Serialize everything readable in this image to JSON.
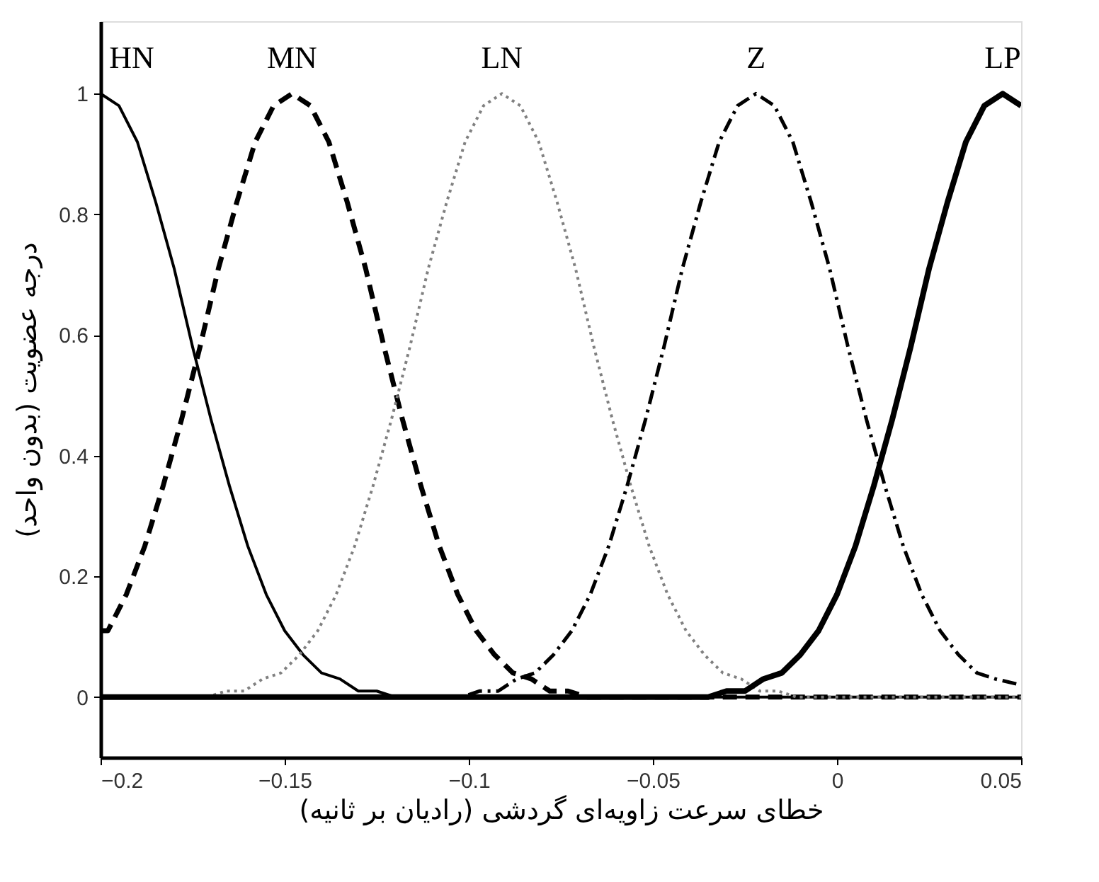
{
  "chart_data": {
    "type": "line",
    "xlabel": "خطای سرعت زاویه‌ای گردشی (رادیان بر ثانیه)",
    "ylabel": "درجه عضویت (بدون واحد)",
    "xlim": [
      -0.2,
      0.05
    ],
    "xticks": [
      -0.2,
      -0.15,
      -0.1,
      -0.05,
      0,
      0.05
    ],
    "ylim": [
      -0.1,
      1.12
    ],
    "yticks": [
      0,
      0.2,
      0.4,
      0.6,
      0.8,
      1
    ],
    "grid": false,
    "marker": "none",
    "series": [
      {
        "name": "HN",
        "color": "#000000",
        "line_style": "solid",
        "x": [
          -0.2,
          -0.195,
          -0.19,
          -0.185,
          -0.18,
          -0.175,
          -0.17,
          -0.165,
          -0.16,
          -0.155,
          -0.15,
          -0.145,
          -0.14,
          -0.135,
          -0.13,
          -0.125,
          -0.12,
          0.05
        ],
        "values": [
          1,
          0.98,
          0.92,
          0.82,
          0.71,
          0.58,
          0.46,
          0.35,
          0.25,
          0.17,
          0.11,
          0.07,
          0.04,
          0.03,
          0.01,
          0.01,
          0,
          0
        ]
      },
      {
        "name": "MN",
        "color": "#000000",
        "line_style": "dashed",
        "x": [
          -0.2,
          -0.198,
          -0.193,
          -0.188,
          -0.183,
          -0.178,
          -0.173,
          -0.168,
          -0.163,
          -0.158,
          -0.153,
          -0.148,
          -0.143,
          -0.138,
          -0.133,
          -0.128,
          -0.123,
          -0.118,
          -0.113,
          -0.108,
          -0.103,
          -0.098,
          -0.093,
          -0.088,
          -0.083,
          -0.078,
          -0.073,
          -0.068,
          0.05
        ],
        "values": [
          0.11,
          0.11,
          0.17,
          0.25,
          0.35,
          0.46,
          0.58,
          0.71,
          0.82,
          0.92,
          0.98,
          1,
          0.98,
          0.92,
          0.82,
          0.71,
          0.58,
          0.46,
          0.35,
          0.25,
          0.17,
          0.11,
          0.07,
          0.04,
          0.03,
          0.01,
          0.01,
          0,
          0
        ]
      },
      {
        "name": "LN",
        "color": "#808080",
        "line_style": "dotted",
        "x": [
          -0.2,
          -0.171,
          -0.166,
          -0.161,
          -0.156,
          -0.151,
          -0.146,
          -0.141,
          -0.136,
          -0.131,
          -0.126,
          -0.121,
          -0.116,
          -0.111,
          -0.106,
          -0.101,
          -0.096,
          -0.091,
          -0.086,
          -0.081,
          -0.076,
          -0.071,
          -0.066,
          -0.061,
          -0.056,
          -0.051,
          -0.046,
          -0.041,
          -0.036,
          -0.031,
          -0.026,
          -0.021,
          -0.016,
          -0.011,
          0.05
        ],
        "values": [
          0,
          0,
          0.01,
          0.01,
          0.03,
          0.04,
          0.07,
          0.11,
          0.17,
          0.25,
          0.35,
          0.46,
          0.58,
          0.71,
          0.82,
          0.92,
          0.98,
          1,
          0.98,
          0.92,
          0.82,
          0.71,
          0.58,
          0.46,
          0.35,
          0.25,
          0.17,
          0.11,
          0.07,
          0.04,
          0.03,
          0.01,
          0.01,
          0,
          0
        ]
      },
      {
        "name": "Z",
        "color": "#000000",
        "line_style": "dashdot",
        "x": [
          -0.2,
          -0.102,
          -0.097,
          -0.092,
          -0.087,
          -0.082,
          -0.077,
          -0.072,
          -0.067,
          -0.062,
          -0.057,
          -0.052,
          -0.047,
          -0.042,
          -0.037,
          -0.032,
          -0.027,
          -0.022,
          -0.017,
          -0.012,
          -0.007,
          -0.002,
          0.003,
          0.008,
          0.013,
          0.018,
          0.023,
          0.028,
          0.033,
          0.038,
          0.043,
          0.05
        ],
        "values": [
          0,
          0,
          0.01,
          0.01,
          0.03,
          0.04,
          0.07,
          0.11,
          0.17,
          0.25,
          0.35,
          0.46,
          0.58,
          0.71,
          0.82,
          0.92,
          0.98,
          1,
          0.98,
          0.92,
          0.82,
          0.71,
          0.58,
          0.46,
          0.35,
          0.25,
          0.17,
          0.11,
          0.07,
          0.04,
          0.03,
          0.02
        ]
      },
      {
        "name": "LP",
        "color": "#000000",
        "line_style": "solid",
        "x": [
          -0.2,
          -0.035,
          -0.03,
          -0.025,
          -0.02,
          -0.015,
          -0.01,
          -0.005,
          0,
          0.005,
          0.01,
          0.015,
          0.02,
          0.025,
          0.03,
          0.035,
          0.04,
          0.045,
          0.05
        ],
        "values": [
          0,
          0,
          0.01,
          0.01,
          0.03,
          0.04,
          0.07,
          0.11,
          0.17,
          0.25,
          0.35,
          0.46,
          0.58,
          0.71,
          0.82,
          0.92,
          0.98,
          1,
          0.98
        ]
      }
    ]
  }
}
